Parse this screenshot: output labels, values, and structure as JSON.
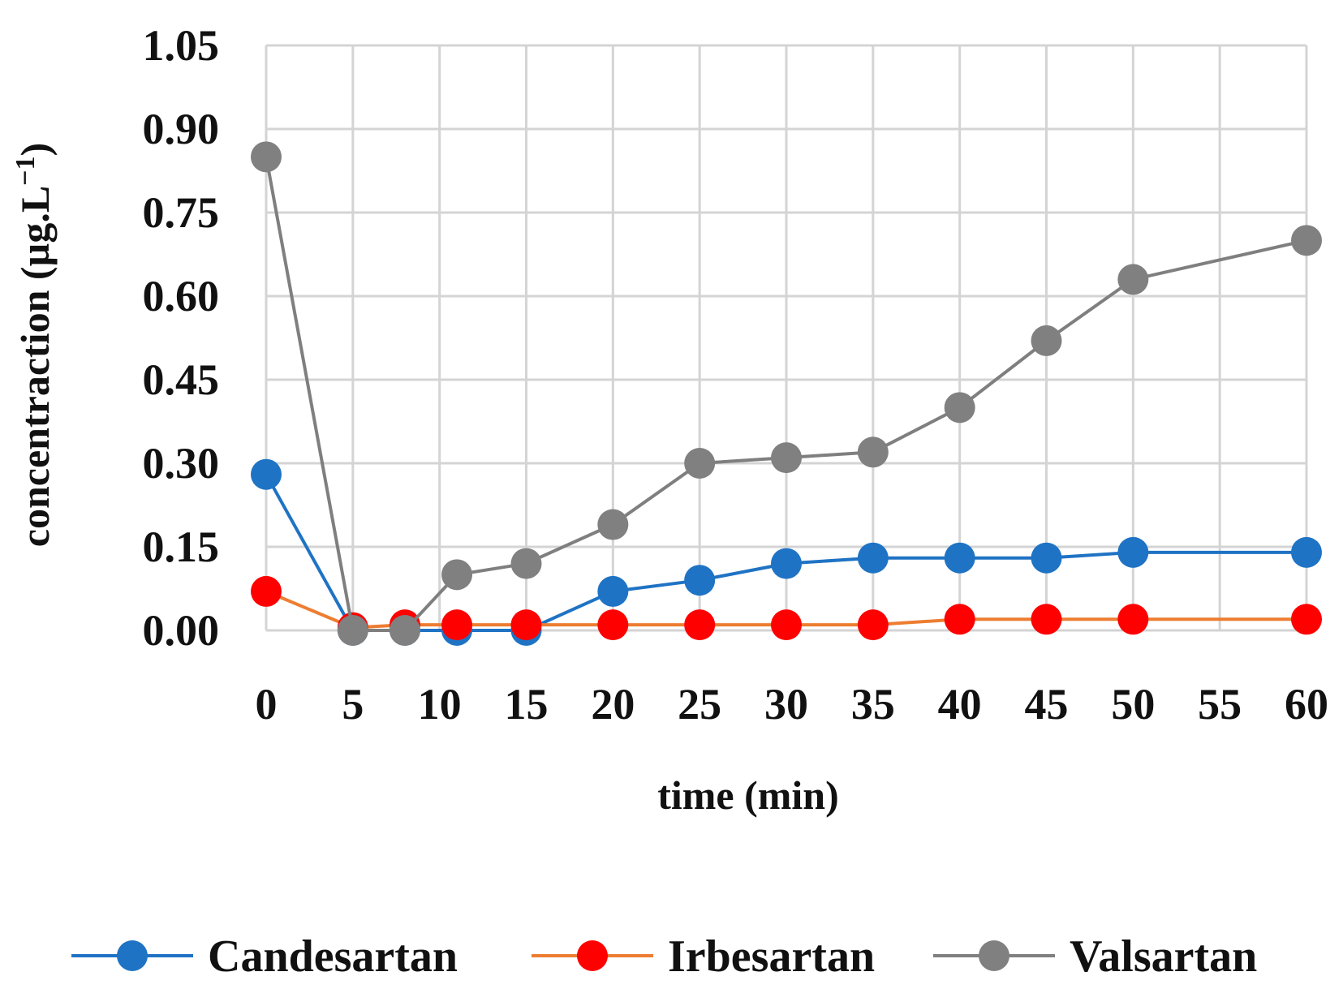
{
  "chart_data": {
    "type": "line",
    "title": "",
    "xlabel": "time (min)",
    "ylabel_main": "concentraction (µg.L",
    "ylabel_sup": "−1",
    "ylabel_close": ")",
    "ylim": [
      0,
      1.05
    ],
    "yticks": [
      0,
      0.15,
      0.3,
      0.45,
      0.6,
      0.75,
      0.9,
      1.05
    ],
    "ytick_labels": [
      "0.00",
      "0.15",
      "0.30",
      "0.45",
      "0.60",
      "0.75",
      "0.90",
      "1.05"
    ],
    "xticks": [
      0,
      5,
      10,
      15,
      20,
      25,
      30,
      35,
      40,
      45,
      50,
      55,
      60
    ],
    "xtick_labels": [
      "0",
      "5",
      "10",
      "15",
      "20",
      "25",
      "30",
      "35",
      "40",
      "45",
      "50",
      "55",
      "60"
    ],
    "xlim": [
      0,
      60
    ],
    "x": [
      0,
      5,
      8,
      11,
      15,
      20,
      25,
      30,
      35,
      40,
      45,
      50,
      60
    ],
    "legend_position": "bottom",
    "series": [
      {
        "name": "Candesartan",
        "line_color": "#1f73c4",
        "marker_color": "#1f73c4",
        "values": [
          0.28,
          0.0,
          0.0,
          0.0,
          0.0,
          0.07,
          0.09,
          0.12,
          0.13,
          0.13,
          0.13,
          0.14,
          0.14
        ]
      },
      {
        "name": "Irbesartan",
        "line_color": "#ed7d31",
        "marker_color": "#ff0000",
        "values": [
          0.07,
          0.005,
          0.01,
          0.01,
          0.01,
          0.01,
          0.01,
          0.01,
          0.01,
          0.02,
          0.02,
          0.02,
          0.02
        ]
      },
      {
        "name": "Valsartan",
        "line_color": "#7f7f7f",
        "marker_color": "#808080",
        "values": [
          0.85,
          0.0,
          0.0,
          0.1,
          0.12,
          0.19,
          0.3,
          0.31,
          0.32,
          0.4,
          0.52,
          0.63,
          0.7
        ]
      }
    ]
  }
}
